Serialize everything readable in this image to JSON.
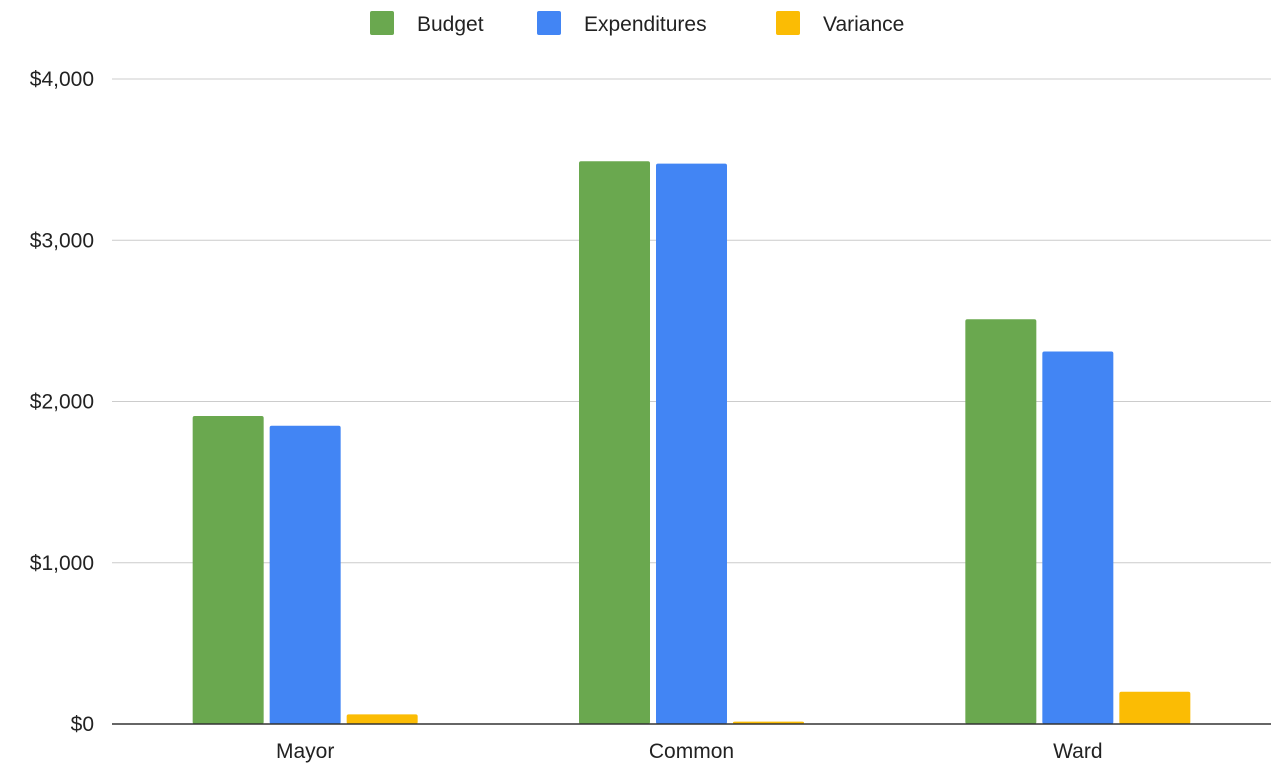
{
  "chart_data": {
    "type": "bar",
    "categories": [
      "Mayor",
      "Common",
      "Ward"
    ],
    "series": [
      {
        "name": "Budget",
        "color": "#6aa84f",
        "values": [
          1910,
          3490,
          2510
        ]
      },
      {
        "name": "Expenditures",
        "color": "#4285f4",
        "values": [
          1850,
          3475,
          2310
        ]
      },
      {
        "name": "Variance",
        "color": "#fbbc04",
        "values": [
          60,
          15,
          200
        ]
      }
    ],
    "y_ticks": [
      {
        "value": 0,
        "label": "$0"
      },
      {
        "value": 1000,
        "label": "$1,000"
      },
      {
        "value": 2000,
        "label": "$2,000"
      },
      {
        "value": 3000,
        "label": "$3,000"
      },
      {
        "value": 4000,
        "label": "$4,000"
      }
    ],
    "ylim": [
      0,
      4000
    ],
    "grid": true,
    "legend_position": "top-center",
    "title": "",
    "xlabel": "",
    "ylabel": ""
  }
}
